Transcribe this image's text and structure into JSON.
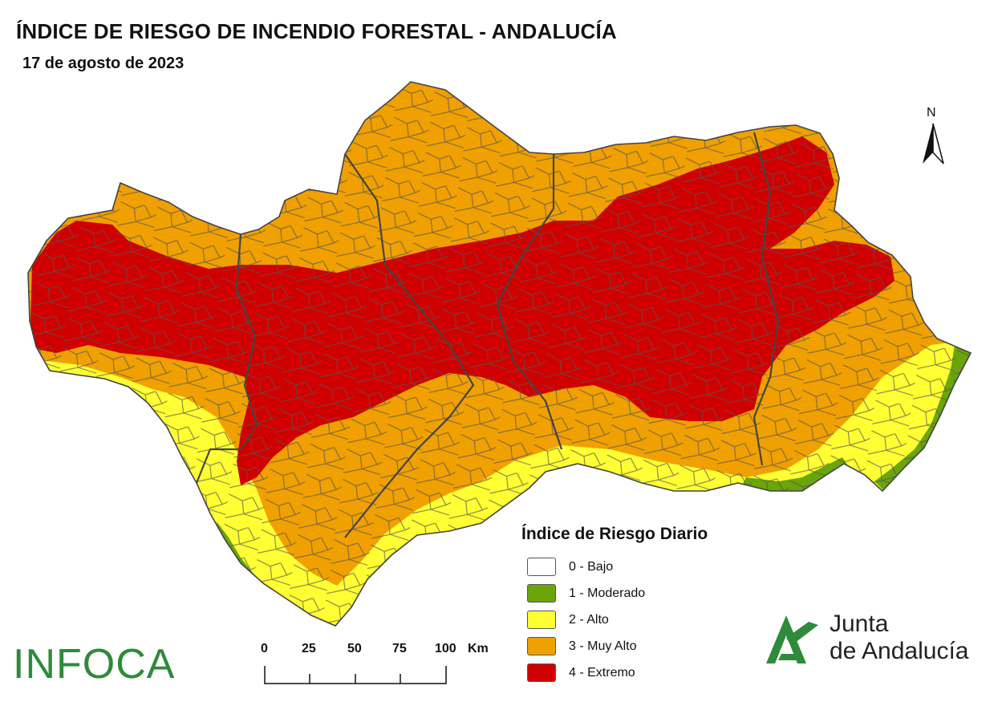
{
  "header": {
    "title": "ÍNDICE DE RIESGO DE INCENDIO FORESTAL - ANDALUCÍA",
    "date": "17 de agosto de 2023"
  },
  "map": {
    "region": "Andalucía",
    "dominant_levels": [
      "4 - Extremo",
      "3 - Muy Alto",
      "2 - Alto",
      "1 - Moderado"
    ]
  },
  "north_arrow": {
    "label": "N",
    "icon": "north-arrow-icon"
  },
  "legend": {
    "title": "Índice de Riesgo Diario",
    "items": [
      {
        "label": "0 - Bajo",
        "color": "#ffffff"
      },
      {
        "label": "1 - Moderado",
        "color": "#6aa50a"
      },
      {
        "label": "2 - Alto",
        "color": "#ffff33"
      },
      {
        "label": "3 - Muy Alto",
        "color": "#f0a000"
      },
      {
        "label": "4 - Extremo",
        "color": "#d10000"
      }
    ]
  },
  "scale_bar": {
    "ticks": [
      "0",
      "25",
      "50",
      "75",
      "100"
    ],
    "unit": "Km"
  },
  "branding": {
    "left_logo": "INFOCA",
    "right_logo_line1": "Junta",
    "right_logo_line2": "de Andalucía",
    "brand_color": "#2e8b3a"
  }
}
